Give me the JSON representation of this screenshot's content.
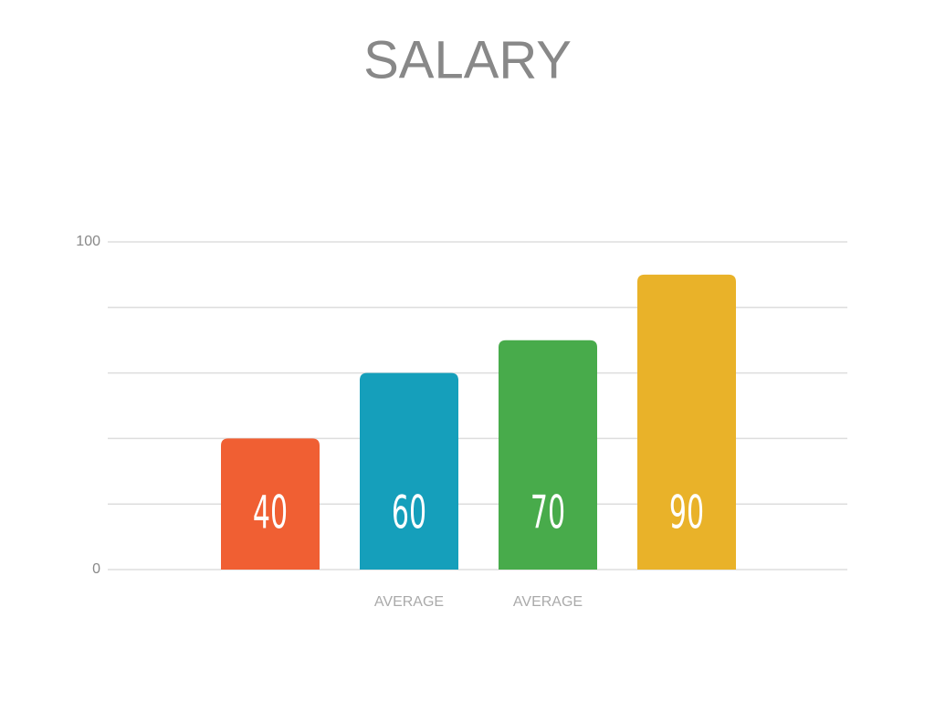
{
  "chart_data": {
    "type": "bar",
    "title": "SALARY",
    "categories": [
      null,
      "AVERAGE",
      "AVERAGE",
      null
    ],
    "values": [
      40,
      60,
      70,
      90
    ],
    "colors": [
      "#f05f33",
      "#159fbb",
      "#48ab4b",
      "#e9b229"
    ],
    "ylim": [
      0,
      100
    ],
    "yticks": [
      0,
      100
    ],
    "gridlines": [
      20,
      40,
      60,
      80
    ],
    "grid": true,
    "data_labels": true
  }
}
